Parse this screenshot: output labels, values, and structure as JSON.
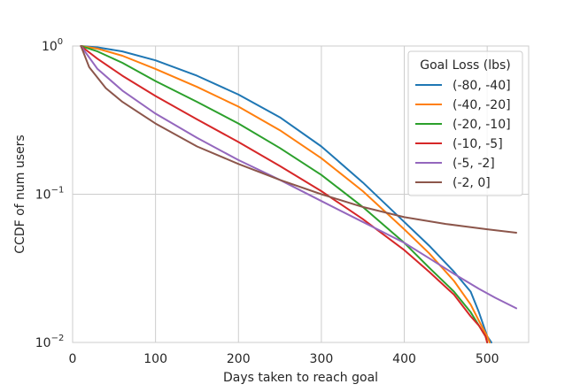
{
  "chart_data": {
    "type": "line",
    "title": "",
    "xlabel": "Days taken to reach goal",
    "ylabel": "CCDF of num users",
    "xlim": [
      0,
      550
    ],
    "ylim": [
      0.01,
      1
    ],
    "yscale": "log",
    "grid": true,
    "x_ticks": [
      {
        "value": 0,
        "label": "0"
      },
      {
        "value": 100,
        "label": "100"
      },
      {
        "value": 200,
        "label": "200"
      },
      {
        "value": 300,
        "label": "300"
      },
      {
        "value": 400,
        "label": "400"
      },
      {
        "value": 500,
        "label": "500"
      }
    ],
    "y_ticks": [
      {
        "value": 1,
        "base": "10",
        "exp": "0"
      },
      {
        "value": 0.1,
        "base": "10",
        "exp": "−1"
      },
      {
        "value": 0.01,
        "base": "10",
        "exp": "−2"
      }
    ],
    "legend": {
      "title": "Goal Loss (lbs)",
      "position": "top-right"
    },
    "series": [
      {
        "name": "(-80, -40]",
        "color": "#1f77b4",
        "x": [
          10,
          30,
          60,
          100,
          150,
          200,
          250,
          300,
          350,
          400,
          430,
          460,
          480,
          490,
          500,
          505
        ],
        "y": [
          1,
          0.98,
          0.92,
          0.8,
          0.63,
          0.47,
          0.33,
          0.21,
          0.12,
          0.065,
          0.045,
          0.03,
          0.022,
          0.016,
          0.011,
          0.01
        ]
      },
      {
        "name": "(-40, -20]",
        "color": "#ff7f0e",
        "x": [
          10,
          30,
          60,
          100,
          150,
          200,
          250,
          300,
          350,
          400,
          430,
          460,
          480,
          490,
          500,
          503
        ],
        "y": [
          1,
          0.96,
          0.86,
          0.7,
          0.53,
          0.39,
          0.27,
          0.175,
          0.105,
          0.058,
          0.04,
          0.026,
          0.018,
          0.014,
          0.011,
          0.01
        ]
      },
      {
        "name": "(-20, -10]",
        "color": "#2ca02c",
        "x": [
          10,
          30,
          60,
          100,
          150,
          200,
          250,
          300,
          350,
          400,
          430,
          460,
          480,
          490,
          498,
          500
        ],
        "y": [
          1,
          0.92,
          0.77,
          0.58,
          0.42,
          0.3,
          0.205,
          0.135,
          0.082,
          0.047,
          0.032,
          0.022,
          0.016,
          0.013,
          0.011,
          0.01
        ]
      },
      {
        "name": "(-10, -5]",
        "color": "#d62728",
        "x": [
          10,
          30,
          60,
          100,
          150,
          200,
          250,
          300,
          350,
          400,
          430,
          460,
          480,
          490,
          498,
          500
        ],
        "y": [
          1,
          0.82,
          0.63,
          0.46,
          0.32,
          0.225,
          0.155,
          0.105,
          0.068,
          0.042,
          0.03,
          0.021,
          0.015,
          0.013,
          0.011,
          0.01
        ]
      },
      {
        "name": "(-5, -2]",
        "color": "#9467bd",
        "x": [
          10,
          30,
          60,
          100,
          150,
          200,
          250,
          300,
          350,
          400,
          430,
          460,
          490,
          510,
          535
        ],
        "y": [
          1,
          0.7,
          0.5,
          0.35,
          0.24,
          0.17,
          0.125,
          0.09,
          0.065,
          0.047,
          0.037,
          0.029,
          0.023,
          0.02,
          0.017
        ]
      },
      {
        "name": "(-2, 0]",
        "color": "#8c564b",
        "x": [
          10,
          20,
          40,
          60,
          100,
          150,
          200,
          250,
          300,
          350,
          400,
          450,
          500,
          535
        ],
        "y": [
          1,
          0.72,
          0.52,
          0.42,
          0.3,
          0.21,
          0.16,
          0.125,
          0.1,
          0.082,
          0.07,
          0.063,
          0.058,
          0.055
        ]
      }
    ]
  }
}
